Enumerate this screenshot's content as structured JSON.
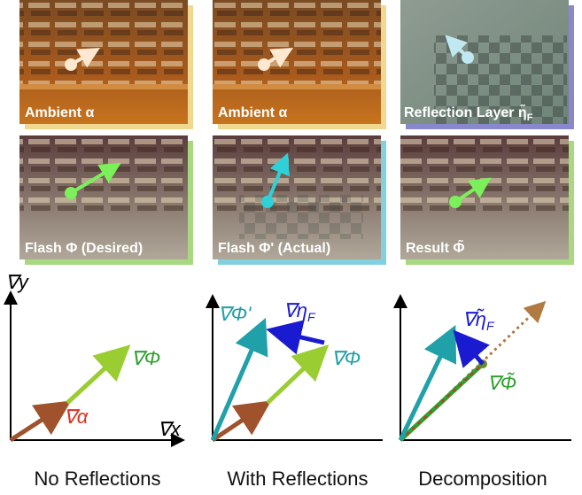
{
  "tiles": [
    {
      "caption": "Ambient α"
    },
    {
      "caption": "Ambient α"
    },
    {
      "caption": "Reflection Layer η̃",
      "caption_sub": "F"
    },
    {
      "caption": "Flash Φ (Desired)"
    },
    {
      "caption": "Flash Φ' (Actual)"
    },
    {
      "caption": "Result Φ̃"
    }
  ],
  "diagrams": [
    {
      "y_axis": "∇y",
      "x_axis": "∇x",
      "labels": [
        {
          "text": "∇α"
        },
        {
          "text": "∇Φ"
        }
      ],
      "caption": "No Reflections"
    },
    {
      "labels": [
        {
          "text": "∇Φ'"
        },
        {
          "text": "∇η",
          "sub": "F"
        },
        {
          "text": "∇Φ"
        }
      ],
      "caption": "With Reflections"
    },
    {
      "labels": [
        {
          "text": "∇η̃",
          "sub": "F"
        },
        {
          "text": "∇Φ̃"
        }
      ],
      "caption": "Decomposition"
    }
  ]
}
